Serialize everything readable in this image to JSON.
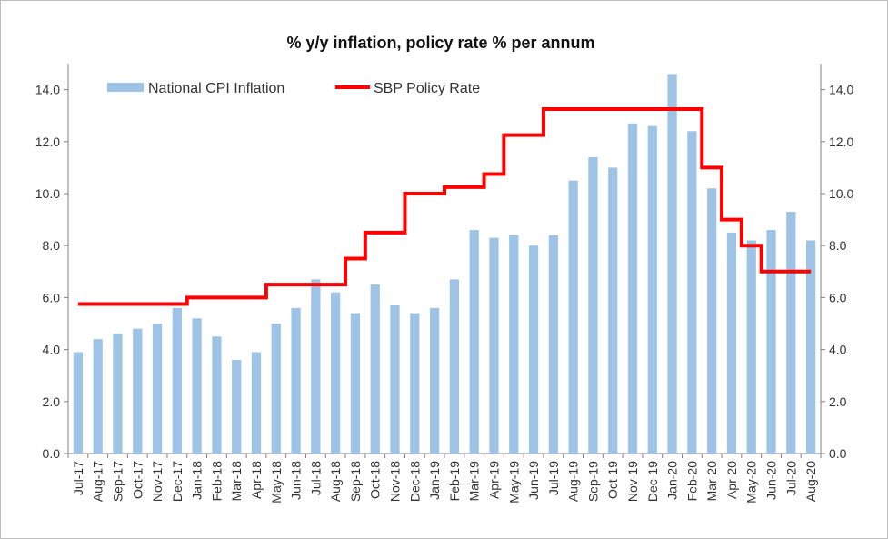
{
  "chart_data": {
    "type": "bar",
    "title": "% y/y inflation, policy rate % per annum",
    "categories": [
      "Jul-17",
      "Aug-17",
      "Sep-17",
      "Oct-17",
      "Nov-17",
      "Dec-17",
      "Jan-18",
      "Feb-18",
      "Mar-18",
      "Apr-18",
      "May-18",
      "Jun-18",
      "Jul-18",
      "Aug-18",
      "Sep-18",
      "Oct-18",
      "Nov-18",
      "Dec-18",
      "Jan-19",
      "Feb-19",
      "Mar-19",
      "Apr-19",
      "May-19",
      "Jun-19",
      "Jul-19",
      "Aug-19",
      "Sep-19",
      "Oct-19",
      "Nov-19",
      "Dec-19",
      "Jan-20",
      "Feb-20",
      "Mar-20",
      "Apr-20",
      "May-20",
      "Jun-20",
      "Jul-20",
      "Aug-20"
    ],
    "series": [
      {
        "name": "National CPI Inflation",
        "kind": "bar",
        "color": "#9dc3e6",
        "values": [
          3.9,
          4.4,
          4.6,
          4.8,
          5.0,
          5.6,
          5.2,
          4.5,
          3.6,
          3.9,
          5.0,
          5.6,
          6.7,
          6.2,
          5.4,
          6.5,
          5.7,
          5.4,
          5.6,
          6.7,
          8.6,
          8.3,
          8.4,
          8.0,
          8.4,
          10.5,
          11.4,
          11.0,
          12.7,
          12.6,
          14.6,
          12.4,
          10.2,
          8.5,
          8.2,
          8.6,
          9.3,
          8.2
        ]
      },
      {
        "name": "SBP Policy Rate",
        "kind": "step-line",
        "color": "#ff0000",
        "values": [
          5.75,
          5.75,
          5.75,
          5.75,
          5.75,
          5.75,
          6.0,
          6.0,
          6.0,
          6.0,
          6.5,
          6.5,
          6.5,
          6.5,
          7.5,
          8.5,
          8.5,
          10.0,
          10.0,
          10.25,
          10.25,
          10.75,
          12.25,
          12.25,
          13.25,
          13.25,
          13.25,
          13.25,
          13.25,
          13.25,
          13.25,
          13.25,
          11.0,
          9.0,
          8.0,
          7.0,
          7.0,
          7.0
        ]
      }
    ],
    "y_left": {
      "min": 0,
      "max": 15,
      "ticks": [
        "0.0",
        "2.0",
        "4.0",
        "6.0",
        "8.0",
        "10.0",
        "12.0",
        "14.0"
      ]
    },
    "y_right": {
      "min": 0,
      "max": 15,
      "ticks": [
        "0.0",
        "2.0",
        "4.0",
        "6.0",
        "8.0",
        "10.0",
        "12.0",
        "14.0"
      ]
    },
    "grid": false,
    "legend_position": "top-left"
  }
}
